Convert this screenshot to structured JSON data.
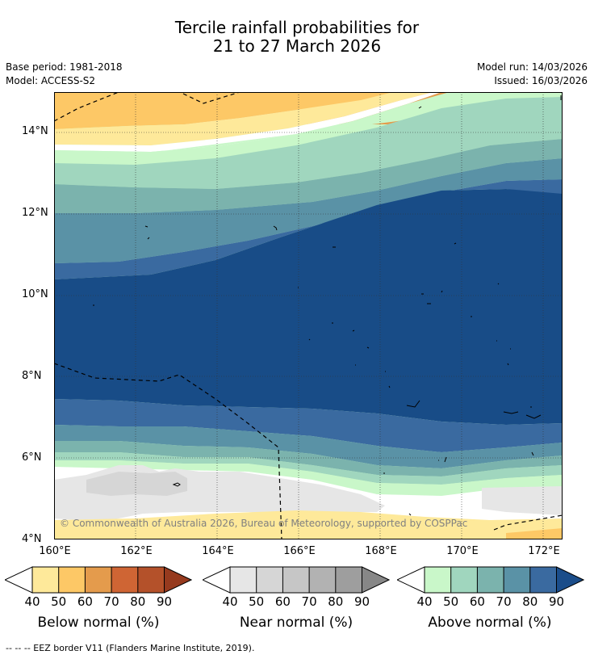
{
  "title": {
    "line1": "Tercile rainfall probabilities for",
    "line2": "21 to 27 March 2026"
  },
  "meta": {
    "base_period": "Base period: 1981-2018",
    "model": "Model: ACCESS-S2",
    "model_run": "Model run: 14/03/2026",
    "issued": "Issued: 16/03/2026"
  },
  "map": {
    "lat_labels": [
      "14°N",
      "12°N",
      "10°N",
      "8°N",
      "6°N",
      "4°N"
    ],
    "lon_labels": [
      "160°E",
      "162°E",
      "164°E",
      "166°E",
      "168°E",
      "170°E",
      "172°E"
    ],
    "copyright": "© Commonwealth of Australia 2026, Bureau of Meteorology, supported by COSPPac",
    "extent": {
      "lon_min": 160,
      "lon_max": 172.5,
      "lat_min": 4,
      "lat_max": 15
    }
  },
  "legend": {
    "below": {
      "title": "Below normal (%)",
      "ticks": [
        "40",
        "50",
        "60",
        "70",
        "80",
        "90"
      ],
      "colors": [
        "#ffffff",
        "#fee99a",
        "#fdc866",
        "#e49b4c",
        "#cf6534",
        "#b4512a",
        "#963a1e"
      ]
    },
    "near": {
      "title": "Near normal (%)",
      "ticks": [
        "40",
        "50",
        "60",
        "70",
        "80",
        "90"
      ],
      "colors": [
        "#ffffff",
        "#e6e6e6",
        "#d6d6d6",
        "#c6c6c6",
        "#b2b2b2",
        "#9e9e9e",
        "#878787"
      ]
    },
    "above": {
      "title": "Above normal (%)",
      "ticks": [
        "40",
        "50",
        "60",
        "70",
        "80",
        "90"
      ],
      "colors": [
        "#ffffff",
        "#c9f7c9",
        "#a0d6be",
        "#7bb3ad",
        "#5a92a6",
        "#3a6aa0",
        "#1b4d8a"
      ]
    }
  },
  "footer": {
    "eez_note": "--  --  -- EEZ border V11 (Flanders Marine Institute, 2019)."
  }
}
